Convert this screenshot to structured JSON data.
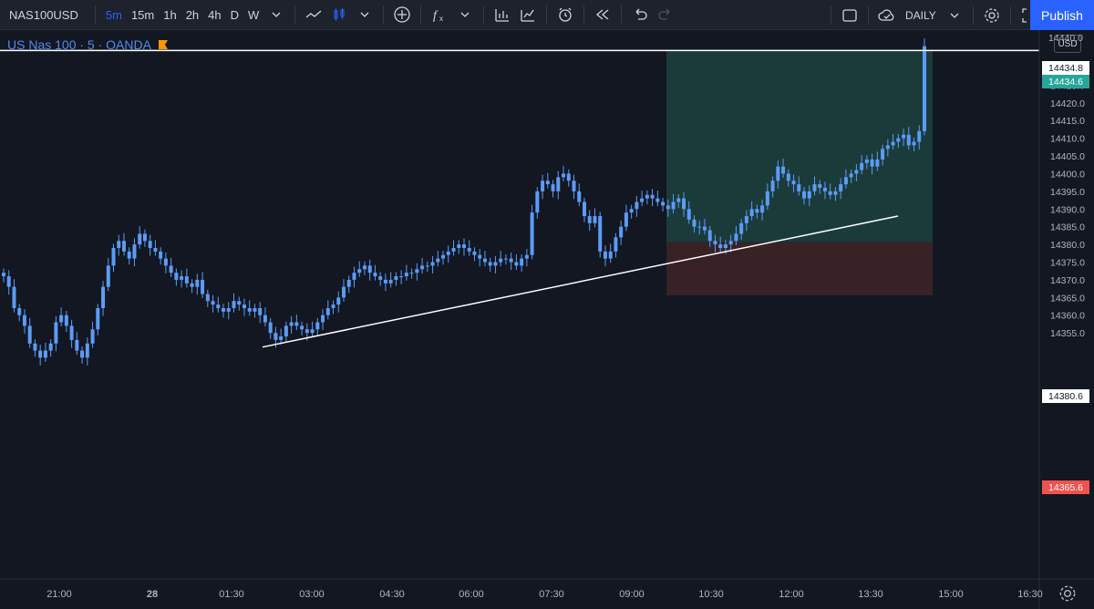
{
  "toolbar": {
    "symbol": "NAS100USD",
    "intervals": [
      {
        "label": "5m",
        "active": true
      },
      {
        "label": "15m",
        "active": false
      },
      {
        "label": "1h",
        "active": false
      },
      {
        "label": "2h",
        "active": false
      },
      {
        "label": "4h",
        "active": false
      },
      {
        "label": "D",
        "active": false
      },
      {
        "label": "W",
        "active": false
      }
    ],
    "icons": [
      "chevron-down-icon",
      "line-chart-icon",
      "candles-icon",
      "chevron-down-icon",
      "add-compare-icon",
      "indicators-icon",
      "chevron-down-icon",
      "templates-icon",
      "financials-icon",
      "alert-icon",
      "replay-icon",
      "undo-icon",
      "redo-icon"
    ],
    "layout_label": "DAILY",
    "publish_label": "Publish"
  },
  "legend": {
    "title": "US Nas 100 · 5 · OANDA",
    "currency": "USD"
  },
  "colors": {
    "background": "#131722",
    "candle": "#5b9cf6",
    "profit_zone": "#1b3d3d",
    "loss_zone": "#3a2327",
    "trendline": "#ffffff",
    "profit_tag": "#26a69a",
    "loss_tag": "#ef5350"
  },
  "chart_data": {
    "type": "candlestick",
    "symbol": "US Nas 100",
    "timeframe": "5",
    "ylim": [
      14350,
      14440
    ],
    "y_ticks": [
      14355,
      14360,
      14365,
      14370,
      14375,
      14380,
      14385,
      14390,
      14395,
      14400,
      14405,
      14410,
      14415,
      14420,
      14425,
      14430
    ],
    "x_tick_labels": [
      "21:00",
      "28",
      "01:30",
      "03:00",
      "04:30",
      "06:00",
      "07:30",
      "09:00",
      "10:30",
      "12:00",
      "13:30",
      "15:00",
      "16:30"
    ],
    "closes": [
      14371,
      14368,
      14362,
      14360,
      14357,
      14352,
      14350,
      14348,
      14350,
      14352,
      14358,
      14360,
      14357,
      14353,
      14350,
      14348,
      14352,
      14356,
      14362,
      14368,
      14374,
      14379,
      14381,
      14378,
      14376,
      14380,
      14383,
      14381,
      14379,
      14378,
      14376,
      14374,
      14372,
      14370,
      14371,
      14369,
      14368,
      14370,
      14366,
      14364,
      14363,
      14362,
      14361,
      14362,
      14364,
      14363,
      14362,
      14361,
      14362,
      14360,
      14358,
      14355,
      14353,
      14354,
      14357,
      14358,
      14357,
      14356,
      14355,
      14356,
      14358,
      14360,
      14362,
      14363,
      14365,
      14368,
      14370,
      14372,
      14373,
      14374,
      14372,
      14371,
      14370,
      14369,
      14370,
      14371,
      14371,
      14372,
      14372,
      14373,
      14374,
      14374,
      14375,
      14376,
      14377,
      14378,
      14379,
      14380,
      14379,
      14378,
      14377,
      14376,
      14375,
      14374,
      14375,
      14376,
      14376,
      14375,
      14374,
      14376,
      14377,
      14389,
      14395,
      14398,
      14397,
      14395,
      14399,
      14400,
      14398,
      14395,
      14392,
      14388,
      14386,
      14388,
      14378,
      14376,
      14378,
      14382,
      14385,
      14389,
      14390,
      14392,
      14393,
      14394,
      14393,
      14392,
      14391,
      14390,
      14392,
      14393,
      14390,
      14387,
      14385,
      14385,
      14384,
      14381,
      14380,
      14379,
      14380,
      14381,
      14383,
      14386,
      14388,
      14390,
      14389,
      14391,
      14395,
      14398,
      14402,
      14400,
      14398,
      14397,
      14395,
      14393,
      14395,
      14397,
      14396,
      14395,
      14394,
      14395,
      14397,
      14399,
      14400,
      14401,
      14403,
      14404,
      14402,
      14404,
      14407,
      14408,
      14409,
      14410,
      14411,
      14408,
      14409,
      14412,
      14436
    ],
    "trade": {
      "entry": 14380.6,
      "target": 14434.6,
      "stop": 14365.6,
      "current": 14434.8
    },
    "price_labels": {
      "current": "14434.8",
      "target": "14434.6",
      "entry": "14380.6",
      "stop": "14365.6",
      "top_partial": "14440.0"
    }
  }
}
